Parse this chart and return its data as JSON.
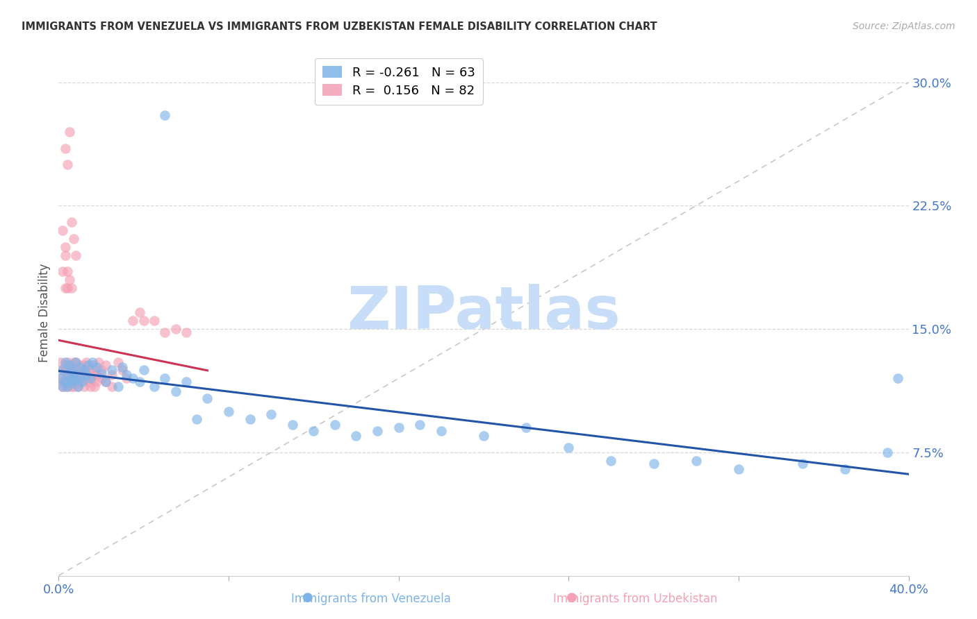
{
  "title": "IMMIGRANTS FROM VENEZUELA VS IMMIGRANTS FROM UZBEKISTAN FEMALE DISABILITY CORRELATION CHART",
  "source": "Source: ZipAtlas.com",
  "ylabel": "Female Disability",
  "yticks": [
    0.075,
    0.15,
    0.225,
    0.3
  ],
  "ytick_labels": [
    "7.5%",
    "15.0%",
    "22.5%",
    "30.0%"
  ],
  "xlim": [
    0.0,
    0.4
  ],
  "ylim": [
    0.0,
    0.32
  ],
  "xticks": [
    0.0,
    0.08,
    0.16,
    0.24,
    0.32,
    0.4
  ],
  "venezuela_color": "#7db3e8",
  "uzbekistan_color": "#f4a0b5",
  "trendline_venezuela_color": "#2255aa",
  "trendline_uzbekistan_color": "#cc3355",
  "trendline_dashed_color": "#c8c8c8",
  "background_color": "#ffffff",
  "watermark_text": "ZIPatlas",
  "watermark_color": "#ddeeff",
  "R_venezuela": -0.261,
  "N_venezuela": 63,
  "R_uzbekistan": 0.156,
  "N_uzbekistan": 82,
  "tick_color": "#4477cc",
  "title_color": "#333333",
  "source_color": "#aaaaaa",
  "legend_edge_color": "#cccccc",
  "grid_color": "#d8d8d8",
  "venezuela_x": [
    0.001,
    0.002,
    0.002,
    0.003,
    0.003,
    0.004,
    0.004,
    0.005,
    0.005,
    0.006,
    0.006,
    0.007,
    0.007,
    0.008,
    0.008,
    0.009,
    0.01,
    0.01,
    0.011,
    0.012,
    0.013,
    0.014,
    0.015,
    0.016,
    0.018,
    0.02,
    0.022,
    0.025,
    0.028,
    0.03,
    0.032,
    0.035,
    0.038,
    0.04,
    0.045,
    0.05,
    0.055,
    0.06,
    0.065,
    0.07,
    0.08,
    0.09,
    0.1,
    0.11,
    0.12,
    0.13,
    0.14,
    0.15,
    0.16,
    0.17,
    0.18,
    0.2,
    0.22,
    0.24,
    0.26,
    0.28,
    0.3,
    0.32,
    0.35,
    0.37,
    0.39,
    0.395,
    0.05
  ],
  "venezuela_y": [
    0.12,
    0.125,
    0.115,
    0.13,
    0.118,
    0.122,
    0.115,
    0.128,
    0.12,
    0.125,
    0.117,
    0.123,
    0.119,
    0.13,
    0.122,
    0.115,
    0.127,
    0.12,
    0.118,
    0.125,
    0.122,
    0.128,
    0.12,
    0.13,
    0.127,
    0.123,
    0.118,
    0.125,
    0.115,
    0.127,
    0.122,
    0.12,
    0.118,
    0.125,
    0.115,
    0.12,
    0.112,
    0.118,
    0.095,
    0.108,
    0.1,
    0.095,
    0.098,
    0.092,
    0.088,
    0.092,
    0.085,
    0.088,
    0.09,
    0.092,
    0.088,
    0.085,
    0.09,
    0.078,
    0.07,
    0.068,
    0.07,
    0.065,
    0.068,
    0.065,
    0.075,
    0.12,
    0.28
  ],
  "uzbekistan_x": [
    0.001,
    0.001,
    0.002,
    0.002,
    0.002,
    0.003,
    0.003,
    0.003,
    0.003,
    0.004,
    0.004,
    0.004,
    0.004,
    0.005,
    0.005,
    0.005,
    0.005,
    0.006,
    0.006,
    0.006,
    0.006,
    0.007,
    0.007,
    0.007,
    0.007,
    0.008,
    0.008,
    0.008,
    0.009,
    0.009,
    0.009,
    0.01,
    0.01,
    0.01,
    0.011,
    0.011,
    0.012,
    0.012,
    0.013,
    0.013,
    0.014,
    0.014,
    0.015,
    0.015,
    0.016,
    0.016,
    0.017,
    0.017,
    0.018,
    0.018,
    0.019,
    0.02,
    0.02,
    0.022,
    0.022,
    0.025,
    0.025,
    0.028,
    0.03,
    0.032,
    0.035,
    0.038,
    0.04,
    0.045,
    0.05,
    0.055,
    0.06,
    0.003,
    0.004,
    0.005,
    0.006,
    0.007,
    0.008,
    0.002,
    0.002,
    0.003,
    0.003,
    0.003,
    0.004,
    0.004,
    0.005,
    0.006
  ],
  "uzbekistan_y": [
    0.12,
    0.13,
    0.115,
    0.125,
    0.118,
    0.128,
    0.12,
    0.115,
    0.125,
    0.122,
    0.118,
    0.13,
    0.115,
    0.125,
    0.12,
    0.118,
    0.128,
    0.122,
    0.115,
    0.125,
    0.118,
    0.13,
    0.12,
    0.115,
    0.125,
    0.122,
    0.118,
    0.13,
    0.125,
    0.12,
    0.115,
    0.128,
    0.122,
    0.118,
    0.125,
    0.12,
    0.115,
    0.128,
    0.13,
    0.12,
    0.125,
    0.118,
    0.122,
    0.115,
    0.128,
    0.12,
    0.115,
    0.125,
    0.122,
    0.118,
    0.13,
    0.125,
    0.12,
    0.118,
    0.128,
    0.122,
    0.115,
    0.13,
    0.125,
    0.12,
    0.155,
    0.16,
    0.155,
    0.155,
    0.148,
    0.15,
    0.148,
    0.26,
    0.25,
    0.27,
    0.215,
    0.205,
    0.195,
    0.21,
    0.185,
    0.195,
    0.175,
    0.2,
    0.185,
    0.175,
    0.18,
    0.175
  ]
}
